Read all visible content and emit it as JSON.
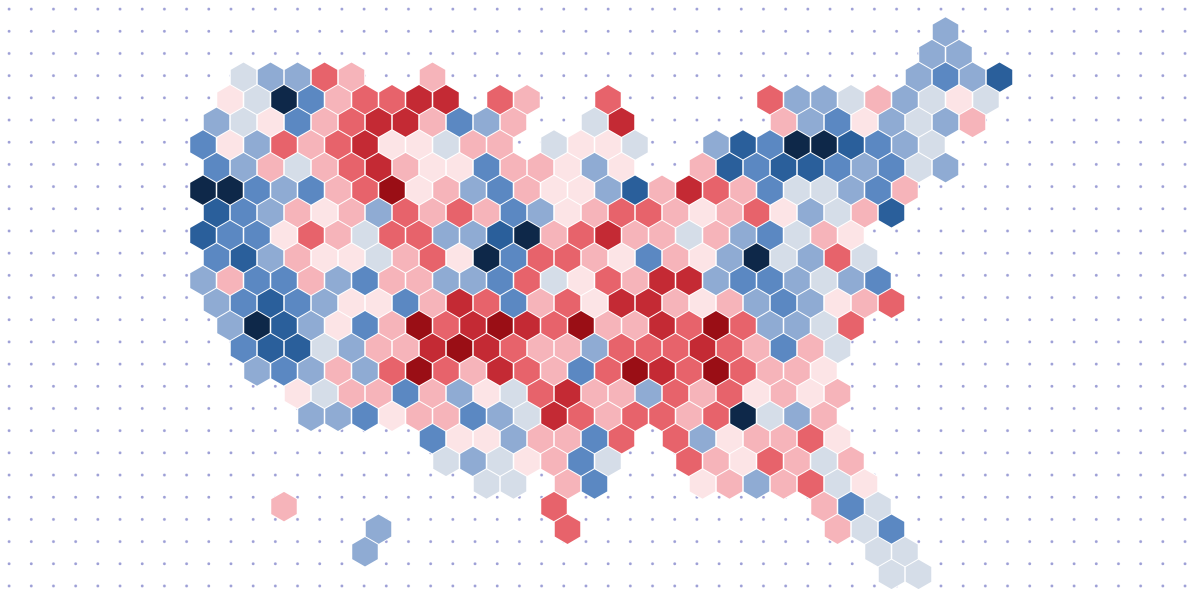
{
  "hex_map": {
    "colors": [
      "#0e2849",
      "#2a5f9b",
      "#5b88c2",
      "#8fabd3",
      "#d5dde8",
      "#fce4e6",
      "#f6b4ba",
      "#e7636b",
      "#c42a34",
      "#9a0e15"
    ],
    "rows": [
      [
        null,
        null,
        null,
        null,
        null,
        null,
        null,
        null,
        null,
        null,
        null,
        null,
        null,
        null,
        null,
        null,
        null,
        null,
        null,
        null,
        null,
        null,
        null,
        null,
        null,
        null,
        null,
        3
      ],
      [
        null,
        null,
        null,
        null,
        null,
        null,
        null,
        null,
        null,
        null,
        null,
        null,
        null,
        null,
        null,
        null,
        null,
        null,
        null,
        null,
        null,
        null,
        null,
        null,
        null,
        null,
        null,
        3,
        3
      ],
      [
        null,
        4,
        3,
        3,
        7,
        6,
        null,
        null,
        6,
        null,
        null,
        null,
        null,
        null,
        null,
        null,
        null,
        null,
        null,
        null,
        null,
        null,
        null,
        null,
        null,
        null,
        3,
        2,
        3,
        1
      ],
      [
        null,
        5,
        4,
        0,
        2,
        6,
        7,
        7,
        8,
        8,
        null,
        7,
        6,
        null,
        null,
        7,
        null,
        null,
        null,
        null,
        null,
        7,
        3,
        3,
        4,
        6,
        3,
        4,
        5,
        4
      ],
      [
        3,
        4,
        5,
        2,
        6,
        7,
        8,
        8,
        6,
        2,
        3,
        6,
        null,
        null,
        4,
        8,
        null,
        null,
        null,
        null,
        null,
        6,
        3,
        2,
        5,
        3,
        4,
        3,
        6
      ],
      [
        2,
        5,
        3,
        7,
        6,
        7,
        8,
        5,
        5,
        4,
        6,
        6,
        null,
        4,
        5,
        5,
        4,
        null,
        null,
        3,
        1,
        2,
        0,
        0,
        1,
        2,
        3,
        4
      ],
      [
        2,
        3,
        6,
        4,
        6,
        7,
        8,
        6,
        5,
        5,
        2,
        6,
        6,
        5,
        3,
        5,
        null,
        null,
        6,
        1,
        2,
        1,
        1,
        2,
        3,
        2,
        4,
        3
      ],
      [
        0,
        0,
        2,
        3,
        2,
        6,
        7,
        9,
        5,
        6,
        3,
        2,
        6,
        5,
        5,
        3,
        1,
        6,
        8,
        7,
        6,
        2,
        4,
        4,
        3,
        2,
        6
      ],
      [
        1,
        2,
        3,
        6,
        5,
        6,
        3,
        7,
        6,
        7,
        6,
        2,
        3,
        5,
        6,
        7,
        7,
        6,
        5,
        6,
        7,
        5,
        3,
        4,
        6,
        1
      ],
      [
        1,
        2,
        2,
        5,
        7,
        6,
        4,
        7,
        7,
        3,
        3,
        1,
        0,
        6,
        7,
        8,
        6,
        6,
        4,
        6,
        3,
        2,
        4,
        6,
        5
      ],
      [
        2,
        1,
        3,
        6,
        5,
        5,
        4,
        6,
        7,
        5,
        0,
        2,
        7,
        7,
        6,
        5,
        2,
        6,
        5,
        3,
        0,
        4,
        3,
        7,
        4
      ],
      [
        3,
        6,
        2,
        2,
        6,
        3,
        2,
        6,
        6,
        3,
        3,
        2,
        7,
        4,
        5,
        7,
        6,
        8,
        8,
        3,
        2,
        2,
        3,
        4,
        3,
        2
      ],
      [
        3,
        2,
        1,
        2,
        3,
        5,
        5,
        2,
        6,
        8,
        7,
        2,
        6,
        7,
        5,
        8,
        8,
        6,
        5,
        6,
        3,
        2,
        3,
        5,
        6,
        7
      ],
      [
        null,
        3,
        0,
        1,
        3,
        5,
        2,
        6,
        9,
        7,
        8,
        9,
        8,
        7,
        9,
        6,
        6,
        8,
        7,
        9,
        7,
        3,
        3,
        4,
        7
      ],
      [
        null,
        2,
        1,
        1,
        4,
        3,
        6,
        6,
        8,
        9,
        8,
        7,
        6,
        6,
        3,
        7,
        7,
        7,
        8,
        7,
        6,
        2,
        6,
        4
      ],
      [
        null,
        null,
        3,
        2,
        3,
        6,
        3,
        7,
        9,
        7,
        6,
        8,
        7,
        6,
        2,
        7,
        9,
        8,
        7,
        9,
        7,
        6,
        6,
        5
      ],
      [
        null,
        null,
        null,
        5,
        4,
        6,
        6,
        2,
        6,
        3,
        5,
        4,
        7,
        8,
        6,
        6,
        3,
        7,
        6,
        7,
        5,
        6,
        5,
        6
      ],
      [
        null,
        null,
        null,
        null,
        3,
        3,
        2,
        5,
        6,
        6,
        2,
        3,
        4,
        8,
        7,
        6,
        7,
        7,
        6,
        7,
        0,
        4,
        3,
        6
      ],
      [
        null,
        null,
        null,
        null,
        null,
        null,
        null,
        null,
        2,
        5,
        5,
        3,
        6,
        6,
        2,
        7,
        null,
        7,
        3,
        5,
        6,
        6,
        7,
        5
      ],
      [
        null,
        null,
        null,
        null,
        null,
        null,
        null,
        null,
        null,
        4,
        3,
        4,
        5,
        6,
        2,
        4,
        null,
        null,
        7,
        6,
        5,
        7,
        6,
        4,
        6
      ],
      [
        null,
        null,
        null,
        null,
        null,
        null,
        null,
        null,
        null,
        null,
        4,
        4,
        null,
        6,
        2,
        null,
        null,
        null,
        5,
        6,
        3,
        6,
        7,
        4,
        5
      ],
      [
        null,
        null,
        null,
        6,
        null,
        null,
        null,
        null,
        null,
        null,
        null,
        null,
        null,
        7,
        null,
        null,
        null,
        null,
        null,
        null,
        null,
        null,
        null,
        6,
        2,
        4
      ],
      [
        null,
        null,
        null,
        null,
        null,
        null,
        3,
        null,
        null,
        null,
        null,
        null,
        null,
        7,
        null,
        null,
        null,
        null,
        null,
        null,
        null,
        null,
        null,
        6,
        4,
        2
      ],
      [
        null,
        null,
        null,
        null,
        null,
        null,
        3,
        null,
        null,
        null,
        null,
        null,
        null,
        null,
        null,
        null,
        null,
        null,
        null,
        null,
        null,
        null,
        null,
        null,
        null,
        4,
        4
      ],
      [
        null,
        null,
        null,
        null,
        null,
        null,
        null,
        null,
        null,
        null,
        null,
        null,
        null,
        null,
        null,
        null,
        null,
        null,
        null,
        null,
        null,
        null,
        null,
        null,
        null,
        4,
        4
      ]
    ]
  }
}
